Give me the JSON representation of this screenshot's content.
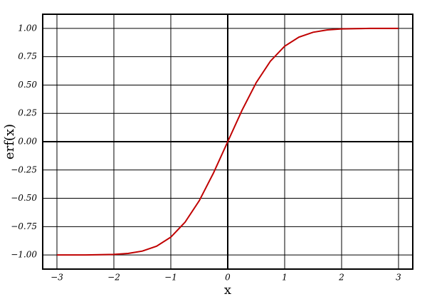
{
  "chart_data": {
    "type": "line",
    "xlabel": "x",
    "ylabel": "erf(x)",
    "x": [
      -3,
      -2.75,
      -2.5,
      -2.25,
      -2,
      -1.75,
      -1.5,
      -1.25,
      -1,
      -0.75,
      -0.5,
      -0.25,
      0,
      0.25,
      0.5,
      0.75,
      1,
      1.25,
      1.5,
      1.75,
      2,
      2.25,
      2.5,
      2.75,
      3
    ],
    "values": [
      -1.0,
      -1.0,
      -1.0,
      -0.998,
      -0.995,
      -0.987,
      -0.966,
      -0.923,
      -0.843,
      -0.711,
      -0.521,
      -0.276,
      0,
      0.276,
      0.521,
      0.711,
      0.843,
      0.923,
      0.966,
      0.987,
      0.995,
      0.998,
      1.0,
      1.0,
      1.0
    ],
    "color": "#c00000",
    "xlim": [
      -3.25,
      3.25
    ],
    "ylim": [
      -1.125,
      1.125
    ],
    "xticks": [
      {
        "value": -3,
        "label": "−3"
      },
      {
        "value": -2,
        "label": "−2"
      },
      {
        "value": -1,
        "label": "−1"
      },
      0,
      1,
      2,
      3
    ],
    "yticks": [
      {
        "value": -1,
        "label": "−1.00"
      },
      {
        "value": -0.75,
        "label": "−0.75"
      },
      {
        "value": -0.5,
        "label": "−0.50"
      },
      {
        "value": -0.25,
        "label": "−0.25"
      },
      {
        "value": 0,
        "label": "0.00"
      },
      {
        "value": 0.25,
        "label": "0.25"
      },
      {
        "value": 0.5,
        "label": "0.50"
      },
      {
        "value": 0.75,
        "label": "0.75"
      },
      {
        "value": 1,
        "label": "1.00"
      }
    ],
    "grid": true
  }
}
